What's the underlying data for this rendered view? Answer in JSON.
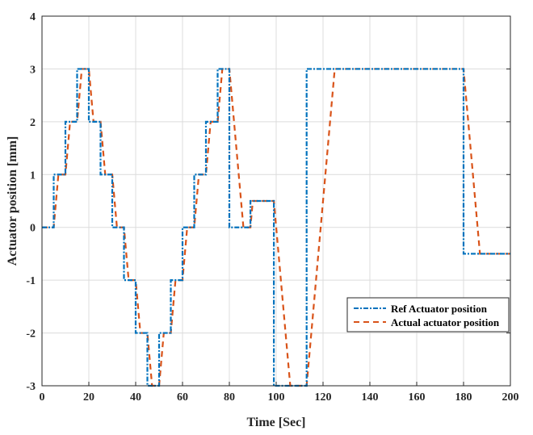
{
  "chart_data": {
    "type": "line",
    "title": "",
    "xlabel": "Time [Sec]",
    "ylabel": "Actuator position [mm]",
    "xlim": [
      0,
      200
    ],
    "ylim": [
      -3,
      4
    ],
    "xticks": [
      0,
      20,
      40,
      60,
      80,
      100,
      120,
      140,
      160,
      180,
      200
    ],
    "yticks": [
      -3,
      -2,
      -1,
      0,
      1,
      2,
      3,
      4
    ],
    "grid": true,
    "legend_position": "bottom-right",
    "series": [
      {
        "name": "Ref Actuator position",
        "color": "#0072BD",
        "style": "dash-dot",
        "x": [
          0,
          5,
          5,
          10,
          10,
          15,
          15,
          20,
          20,
          25,
          25,
          30,
          30,
          35,
          35,
          40,
          40,
          45,
          45,
          50,
          50,
          55,
          55,
          60,
          60,
          65,
          65,
          70,
          70,
          75,
          75,
          80,
          80,
          89,
          89,
          99,
          99,
          113,
          113,
          180,
          180,
          200
        ],
        "y": [
          0,
          0,
          1,
          1,
          2,
          2,
          3,
          3,
          2,
          2,
          1,
          1,
          0,
          0,
          -1,
          -1,
          -2,
          -2,
          -3,
          -3,
          -2,
          -2,
          -1,
          -1,
          0,
          0,
          1,
          1,
          2,
          2,
          3,
          3,
          0,
          0,
          0.5,
          0.5,
          -3,
          -3,
          3,
          3,
          -0.5,
          -0.5
        ]
      },
      {
        "name": "Actual actuator position",
        "color": "#D95319",
        "style": "dashed",
        "x": [
          0,
          5,
          7,
          10,
          12,
          15,
          17,
          20,
          22,
          25,
          27,
          30,
          32,
          35,
          37,
          40,
          42,
          45,
          47,
          50,
          52,
          55,
          57,
          60,
          62,
          65,
          67,
          70,
          72,
          75,
          77,
          80,
          86,
          89,
          90,
          99,
          106,
          113,
          125,
          180,
          187,
          200
        ],
        "y": [
          0,
          0,
          1,
          1,
          2,
          2,
          3,
          3,
          2,
          2,
          1,
          1,
          0,
          0,
          -1,
          -1,
          -2,
          -2,
          -3,
          -3,
          -2,
          -2,
          -1,
          -1,
          0,
          0,
          1,
          1,
          2,
          2,
          3,
          3,
          0,
          0,
          0.5,
          0.5,
          -3,
          -3,
          3,
          3,
          -0.5,
          -0.5
        ]
      }
    ]
  }
}
